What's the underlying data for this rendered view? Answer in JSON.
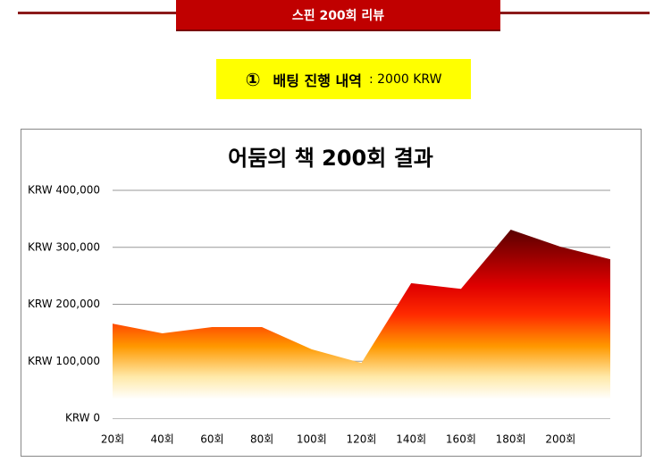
{
  "header": {
    "title": "스핀 200회 리뷰"
  },
  "summary": {
    "number": "①",
    "title": "배팅 진행 내역",
    "amount": ": 2000 KRW"
  },
  "chart_data": {
    "type": "area",
    "title": "어둠의 책 200회 결과",
    "categories": [
      "20회",
      "40회",
      "60회",
      "80회",
      "100회",
      "120회",
      "140회",
      "160회",
      "180회",
      "200회",
      null
    ],
    "values": [
      166000,
      149000,
      160000,
      160000,
      121000,
      97000,
      237000,
      227000,
      331000,
      301000,
      279000
    ],
    "colors": [
      "#5a0000",
      "#e00000",
      "#ff2a00",
      "#ff9900",
      "#ffe9a8",
      "#ffffff"
    ],
    "ylim": [
      0,
      400000
    ],
    "yticks": [
      {
        "value": 0,
        "label": "KRW 0"
      },
      {
        "value": 100000,
        "label": "KRW 100,000"
      },
      {
        "value": 200000,
        "label": "KRW 200,000"
      },
      {
        "value": 300000,
        "label": "KRW 300,000"
      },
      {
        "value": 400000,
        "label": "KRW 400,000"
      }
    ],
    "grid": true
  }
}
